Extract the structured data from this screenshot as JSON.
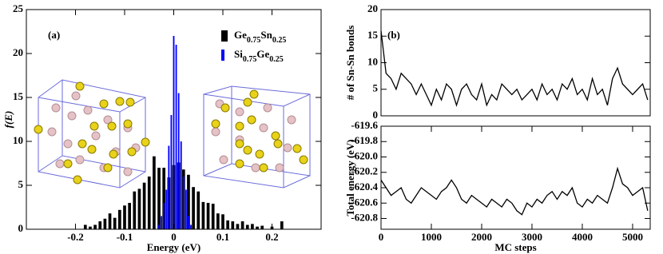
{
  "chart_data": [
    {
      "type": "bar",
      "annotation": "(a)",
      "xlabel": "Energy (eV)",
      "ylabel": "f(E)",
      "xlim": [
        -0.3,
        0.3
      ],
      "xticks": [
        -0.2,
        -0.1,
        0,
        0.1,
        0.2
      ],
      "ylim": [
        0,
        25
      ],
      "yticks": [
        0,
        5,
        10,
        15,
        20,
        25
      ],
      "legend": "upper right",
      "series": [
        {
          "name": "Ge0.75Sn0.25",
          "color": "#000000",
          "x": [
            -0.18,
            -0.17,
            -0.16,
            -0.15,
            -0.14,
            -0.13,
            -0.12,
            -0.11,
            -0.1,
            -0.09,
            -0.08,
            -0.07,
            -0.06,
            -0.05,
            -0.04,
            -0.03,
            -0.02,
            -0.01,
            0,
            0.01,
            0.02,
            0.03,
            0.04,
            0.05,
            0.06,
            0.07,
            0.08,
            0.09,
            0.1,
            0.11,
            0.12,
            0.13,
            0.14,
            0.15,
            0.16,
            0.17,
            0.18,
            0.2,
            0.22
          ],
          "values": [
            0.5,
            0.3,
            0.5,
            0.9,
            1.2,
            1.8,
            1.3,
            2.2,
            2.7,
            3.0,
            4.3,
            4.6,
            5.3,
            6.0,
            8.3,
            7.0,
            7.0,
            5.9,
            7.3,
            7.6,
            6.8,
            6.2,
            4.8,
            4.3,
            3.1,
            3.0,
            2.9,
            1.8,
            1.7,
            1.0,
            0.9,
            0.6,
            0.9,
            0.5,
            0.6,
            0.3,
            0.4,
            0.3,
            0.9
          ]
        },
        {
          "name": "Si0.75Ge0.25",
          "color": "#0000ff",
          "x": [
            -0.03,
            -0.025,
            -0.02,
            -0.015,
            -0.01,
            -0.005,
            0,
            0.005,
            0.01,
            0.015,
            0.02,
            0.025,
            0.03,
            0.035
          ],
          "values": [
            0.5,
            1.5,
            3.0,
            4.5,
            9.5,
            13,
            22,
            21,
            15.5,
            10,
            6,
            4.5,
            1.5,
            0.5
          ]
        }
      ]
    },
    {
      "type": "line",
      "annotation": "(b)",
      "ylabel": "# of Sn-Sn bonds",
      "xlim": [
        0,
        5350
      ],
      "ylim": [
        0,
        20
      ],
      "yticks": [
        0,
        5,
        10,
        15,
        20
      ],
      "x": [
        0,
        100,
        200,
        300,
        400,
        500,
        600,
        700,
        800,
        900,
        1000,
        1100,
        1200,
        1300,
        1400,
        1500,
        1600,
        1700,
        1800,
        1900,
        2000,
        2100,
        2200,
        2300,
        2400,
        2500,
        2600,
        2700,
        2800,
        2900,
        3000,
        3100,
        3200,
        3300,
        3400,
        3500,
        3600,
        3700,
        3800,
        3900,
        4000,
        4100,
        4200,
        4300,
        4400,
        4500,
        4600,
        4700,
        4800,
        4900,
        5000,
        5100,
        5200,
        5300
      ],
      "series": [
        {
          "color": "#000000",
          "values": [
            16,
            8,
            7,
            5,
            8,
            7,
            6,
            4,
            6,
            4,
            2,
            5,
            3,
            6,
            5,
            2,
            5,
            6,
            4,
            3,
            6,
            2,
            4,
            3,
            6,
            5,
            4,
            5,
            3,
            4,
            5,
            3,
            6,
            4,
            5,
            3,
            6,
            5,
            7,
            4,
            5,
            3,
            7,
            4,
            5,
            2,
            7,
            9,
            6,
            5,
            4,
            5,
            6,
            3
          ]
        }
      ]
    },
    {
      "type": "line",
      "xlabel": "MC steps",
      "ylabel": "Total energy (eV)",
      "xlim": [
        0,
        5350
      ],
      "xticks": [
        0,
        1000,
        2000,
        3000,
        4000,
        5000
      ],
      "ylim": [
        -620.94,
        -619.6
      ],
      "yticks": [
        -619.6,
        -619.8,
        {
          "value": -620,
          "label": "-620.0"
        },
        -620.2,
        -620.4,
        -620.6,
        -620.8
      ],
      "x": [
        0,
        100,
        200,
        300,
        400,
        500,
        600,
        700,
        800,
        900,
        1000,
        1100,
        1200,
        1300,
        1400,
        1500,
        1600,
        1700,
        1800,
        1900,
        2000,
        2100,
        2200,
        2300,
        2400,
        2500,
        2600,
        2700,
        2800,
        2900,
        3000,
        3100,
        3200,
        3300,
        3400,
        3500,
        3600,
        3700,
        3800,
        3900,
        4000,
        4100,
        4200,
        4300,
        4400,
        4500,
        4600,
        4700,
        4800,
        4900,
        5000,
        5100,
        5200,
        5300
      ],
      "series": [
        {
          "color": "#000000",
          "values": [
            -620.3,
            -620.4,
            -620.5,
            -620.45,
            -620.4,
            -620.55,
            -620.6,
            -620.5,
            -620.4,
            -620.45,
            -620.5,
            -620.55,
            -620.45,
            -620.4,
            -620.3,
            -620.4,
            -620.55,
            -620.6,
            -620.5,
            -620.55,
            -620.6,
            -620.65,
            -620.55,
            -620.6,
            -620.65,
            -620.55,
            -620.6,
            -620.7,
            -620.75,
            -620.6,
            -620.65,
            -620.55,
            -620.6,
            -620.5,
            -620.45,
            -620.55,
            -620.45,
            -620.5,
            -620.4,
            -620.6,
            -620.65,
            -620.55,
            -620.6,
            -620.5,
            -620.55,
            -620.6,
            -620.4,
            -620.15,
            -620.35,
            -620.4,
            -620.5,
            -620.45,
            -620.4,
            -620.7
          ]
        }
      ]
    }
  ]
}
